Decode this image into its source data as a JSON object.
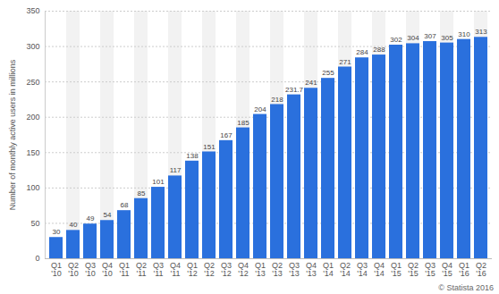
{
  "chart_data": {
    "type": "bar",
    "y_label": "Number of monthly active users in millions",
    "credit": "© Statista 2016",
    "categories": [
      "Q1 '10",
      "Q2 '10",
      "Q3 '10",
      "Q4 '10",
      "Q1 '11",
      "Q2 '11",
      "Q3 '11",
      "Q4 '11",
      "Q1 '12",
      "Q2 '12",
      "Q3 '12",
      "Q4 '12",
      "Q1 '13",
      "Q2 '13",
      "Q3 '13",
      "Q4 '13",
      "Q1 '14",
      "Q2 '14",
      "Q3 '14",
      "Q4 '14",
      "Q1 '15",
      "Q2 '15",
      "Q3 '15",
      "Q4 '15",
      "Q1 '16",
      "Q2 '16"
    ],
    "values": [
      30,
      40,
      49,
      54,
      68,
      85,
      101,
      117,
      138,
      151,
      167,
      185,
      204,
      218,
      231.7,
      241,
      255,
      271,
      284,
      288,
      302,
      304,
      307,
      305,
      310,
      313
    ],
    "color": "#2a70dd",
    "ylim": [
      0,
      350
    ],
    "yticks": [
      0,
      50,
      100,
      150,
      200,
      250,
      300,
      350
    ],
    "grid": true,
    "data_labels": true
  }
}
